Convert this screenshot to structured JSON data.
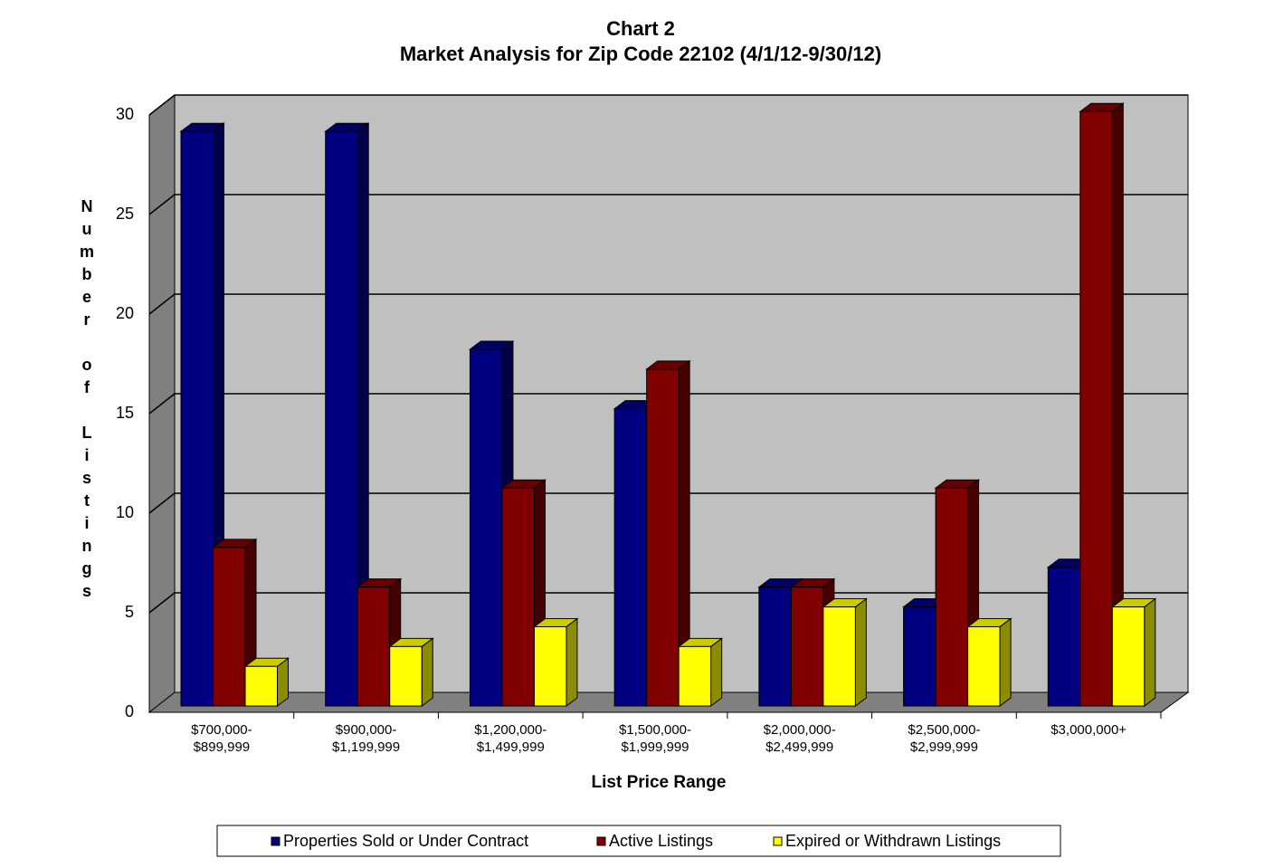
{
  "chart_data": {
    "type": "bar3d",
    "title": "Chart 2",
    "subtitle": "Market Analysis for Zip Code 22102 (4/1/12-9/30/12)",
    "x_label": "List Price Range",
    "y_label": "Number of Listings",
    "categories": [
      [
        "$700,000-",
        "$899,999"
      ],
      [
        "$900,000-",
        "$1,199,999"
      ],
      [
        "$1,200,000-",
        "$1,499,999"
      ],
      [
        "$1,500,000-",
        "$1,999,999"
      ],
      [
        "$2,000,000-",
        "$2,499,999"
      ],
      [
        "$2,500,000-",
        "$2,999,999"
      ],
      [
        "$3,000,000+"
      ]
    ],
    "series": [
      {
        "name": "Properties Sold or Under Contract",
        "color": "#000080",
        "values": [
          29,
          29,
          18,
          15,
          6,
          5,
          7
        ]
      },
      {
        "name": "Active Listings",
        "color": "#800000",
        "values": [
          8,
          6,
          11,
          17,
          6,
          11,
          30
        ]
      },
      {
        "name": "Expired or Withdrawn Listings",
        "color": "#ffff00",
        "values": [
          2,
          3,
          4,
          3,
          5,
          4,
          5
        ]
      }
    ],
    "ylim": [
      0,
      30
    ],
    "yticks": [
      0,
      5,
      10,
      15,
      20,
      25,
      30
    ],
    "grid": true,
    "legend": "bottom"
  }
}
